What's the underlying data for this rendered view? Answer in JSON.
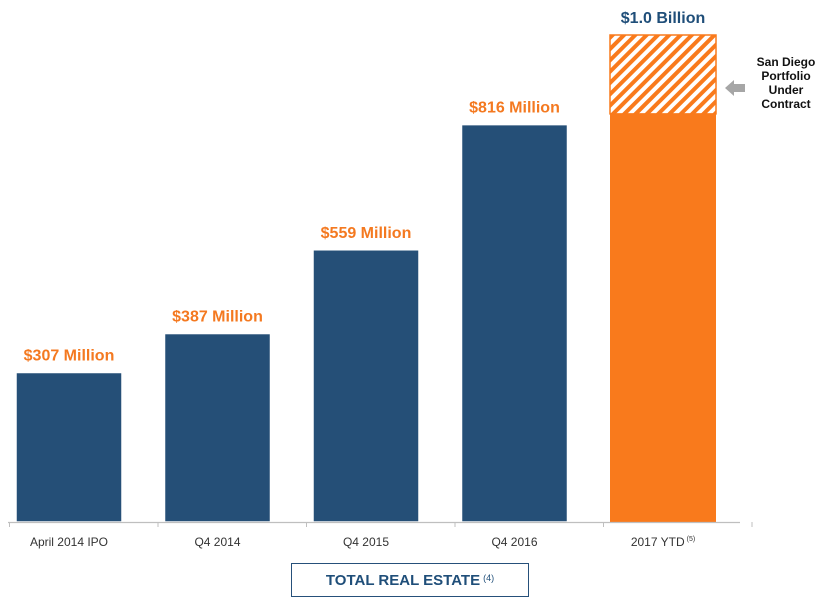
{
  "chart_data": {
    "type": "bar",
    "title": "TOTAL REAL ESTATE",
    "title_footnote": "(4)",
    "categories": [
      "April 2014 IPO",
      "Q4 2014",
      "Q4 2015",
      "Q4 2016",
      "2017 YTD"
    ],
    "category_footnotes": [
      "",
      "",
      "",
      "",
      "(5)"
    ],
    "values": [
      307,
      387,
      559,
      816,
      1000
    ],
    "solid_value_last": 838,
    "data_labels": [
      "$307 Million",
      "$387 Million",
      "$559 Million",
      "$816 Million",
      "$1.0 Billion"
    ],
    "unit": "$ Million",
    "ylim": [
      0,
      1000
    ],
    "annotation": "San Diego Portfolio Under Contract",
    "colors": {
      "bar": "#254f77",
      "bar_border": "#ffffff",
      "highlight": "#f97a1c",
      "label_orange": "#f47920",
      "label_navy": "#1f4e79",
      "axis": "#bfbfbf",
      "arrow": "#a6a6a6"
    }
  },
  "footer": {
    "title": "TOTAL REAL ESTATE",
    "footnote": "(4)"
  },
  "callout": {
    "lines": [
      "San Diego",
      "Portfolio",
      "Under",
      "Contract"
    ],
    "icon": "left-arrow-icon"
  }
}
